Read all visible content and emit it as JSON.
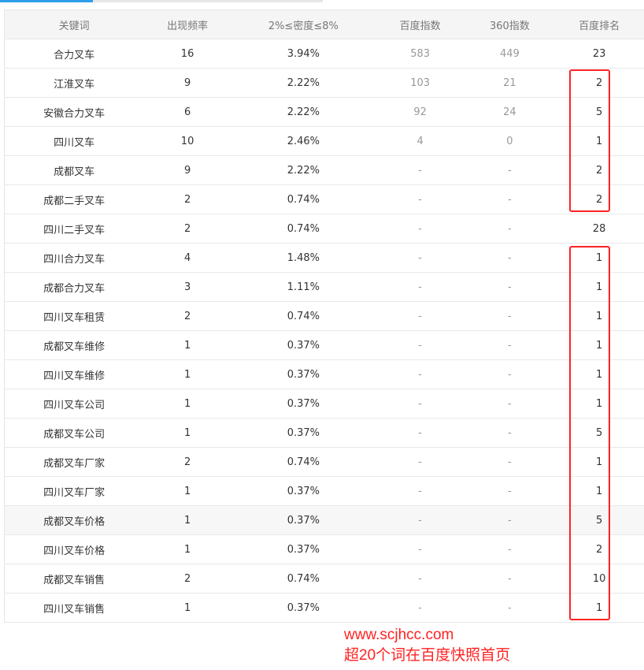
{
  "headers": [
    "关键词",
    "出现频率",
    "2%≤密度≤8%",
    "百度指数",
    "360指数",
    "百度排名"
  ],
  "rows": [
    [
      "合力叉车",
      "16",
      "3.94%",
      "583",
      "449",
      "23"
    ],
    [
      "江淮叉车",
      "9",
      "2.22%",
      "103",
      "21",
      "2"
    ],
    [
      "安徽合力叉车",
      "6",
      "2.22%",
      "92",
      "24",
      "5"
    ],
    [
      "四川叉车",
      "10",
      "2.46%",
      "4",
      "0",
      "1"
    ],
    [
      "成都叉车",
      "9",
      "2.22%",
      "-",
      "-",
      "2"
    ],
    [
      "成都二手叉车",
      "2",
      "0.74%",
      "-",
      "-",
      "2"
    ],
    [
      "四川二手叉车",
      "2",
      "0.74%",
      "-",
      "-",
      "28"
    ],
    [
      "四川合力叉车",
      "4",
      "1.48%",
      "-",
      "-",
      "1"
    ],
    [
      "成都合力叉车",
      "3",
      "1.11%",
      "-",
      "-",
      "1"
    ],
    [
      "四川叉车租赁",
      "2",
      "0.74%",
      "-",
      "-",
      "1"
    ],
    [
      "成都叉车维修",
      "1",
      "0.37%",
      "-",
      "-",
      "1"
    ],
    [
      "四川叉车维修",
      "1",
      "0.37%",
      "-",
      "-",
      "1"
    ],
    [
      "四川叉车公司",
      "1",
      "0.37%",
      "-",
      "-",
      "1"
    ],
    [
      "成都叉车公司",
      "1",
      "0.37%",
      "-",
      "-",
      "5"
    ],
    [
      "成都叉车厂家",
      "2",
      "0.74%",
      "-",
      "-",
      "1"
    ],
    [
      "四川叉车厂家",
      "1",
      "0.37%",
      "-",
      "-",
      "1"
    ],
    [
      "成都叉车价格",
      "1",
      "0.37%",
      "-",
      "-",
      "5"
    ],
    [
      "四川叉车价格",
      "1",
      "0.37%",
      "-",
      "-",
      "2"
    ],
    [
      "成都叉车销售",
      "2",
      "0.74%",
      "-",
      "-",
      "10"
    ],
    [
      "四川叉车销售",
      "1",
      "0.37%",
      "-",
      "-",
      "1"
    ]
  ],
  "overlay": {
    "url": "www.scjhcc.com",
    "caption": "超20个词在百度快照首页",
    "color": "#ff2222"
  }
}
